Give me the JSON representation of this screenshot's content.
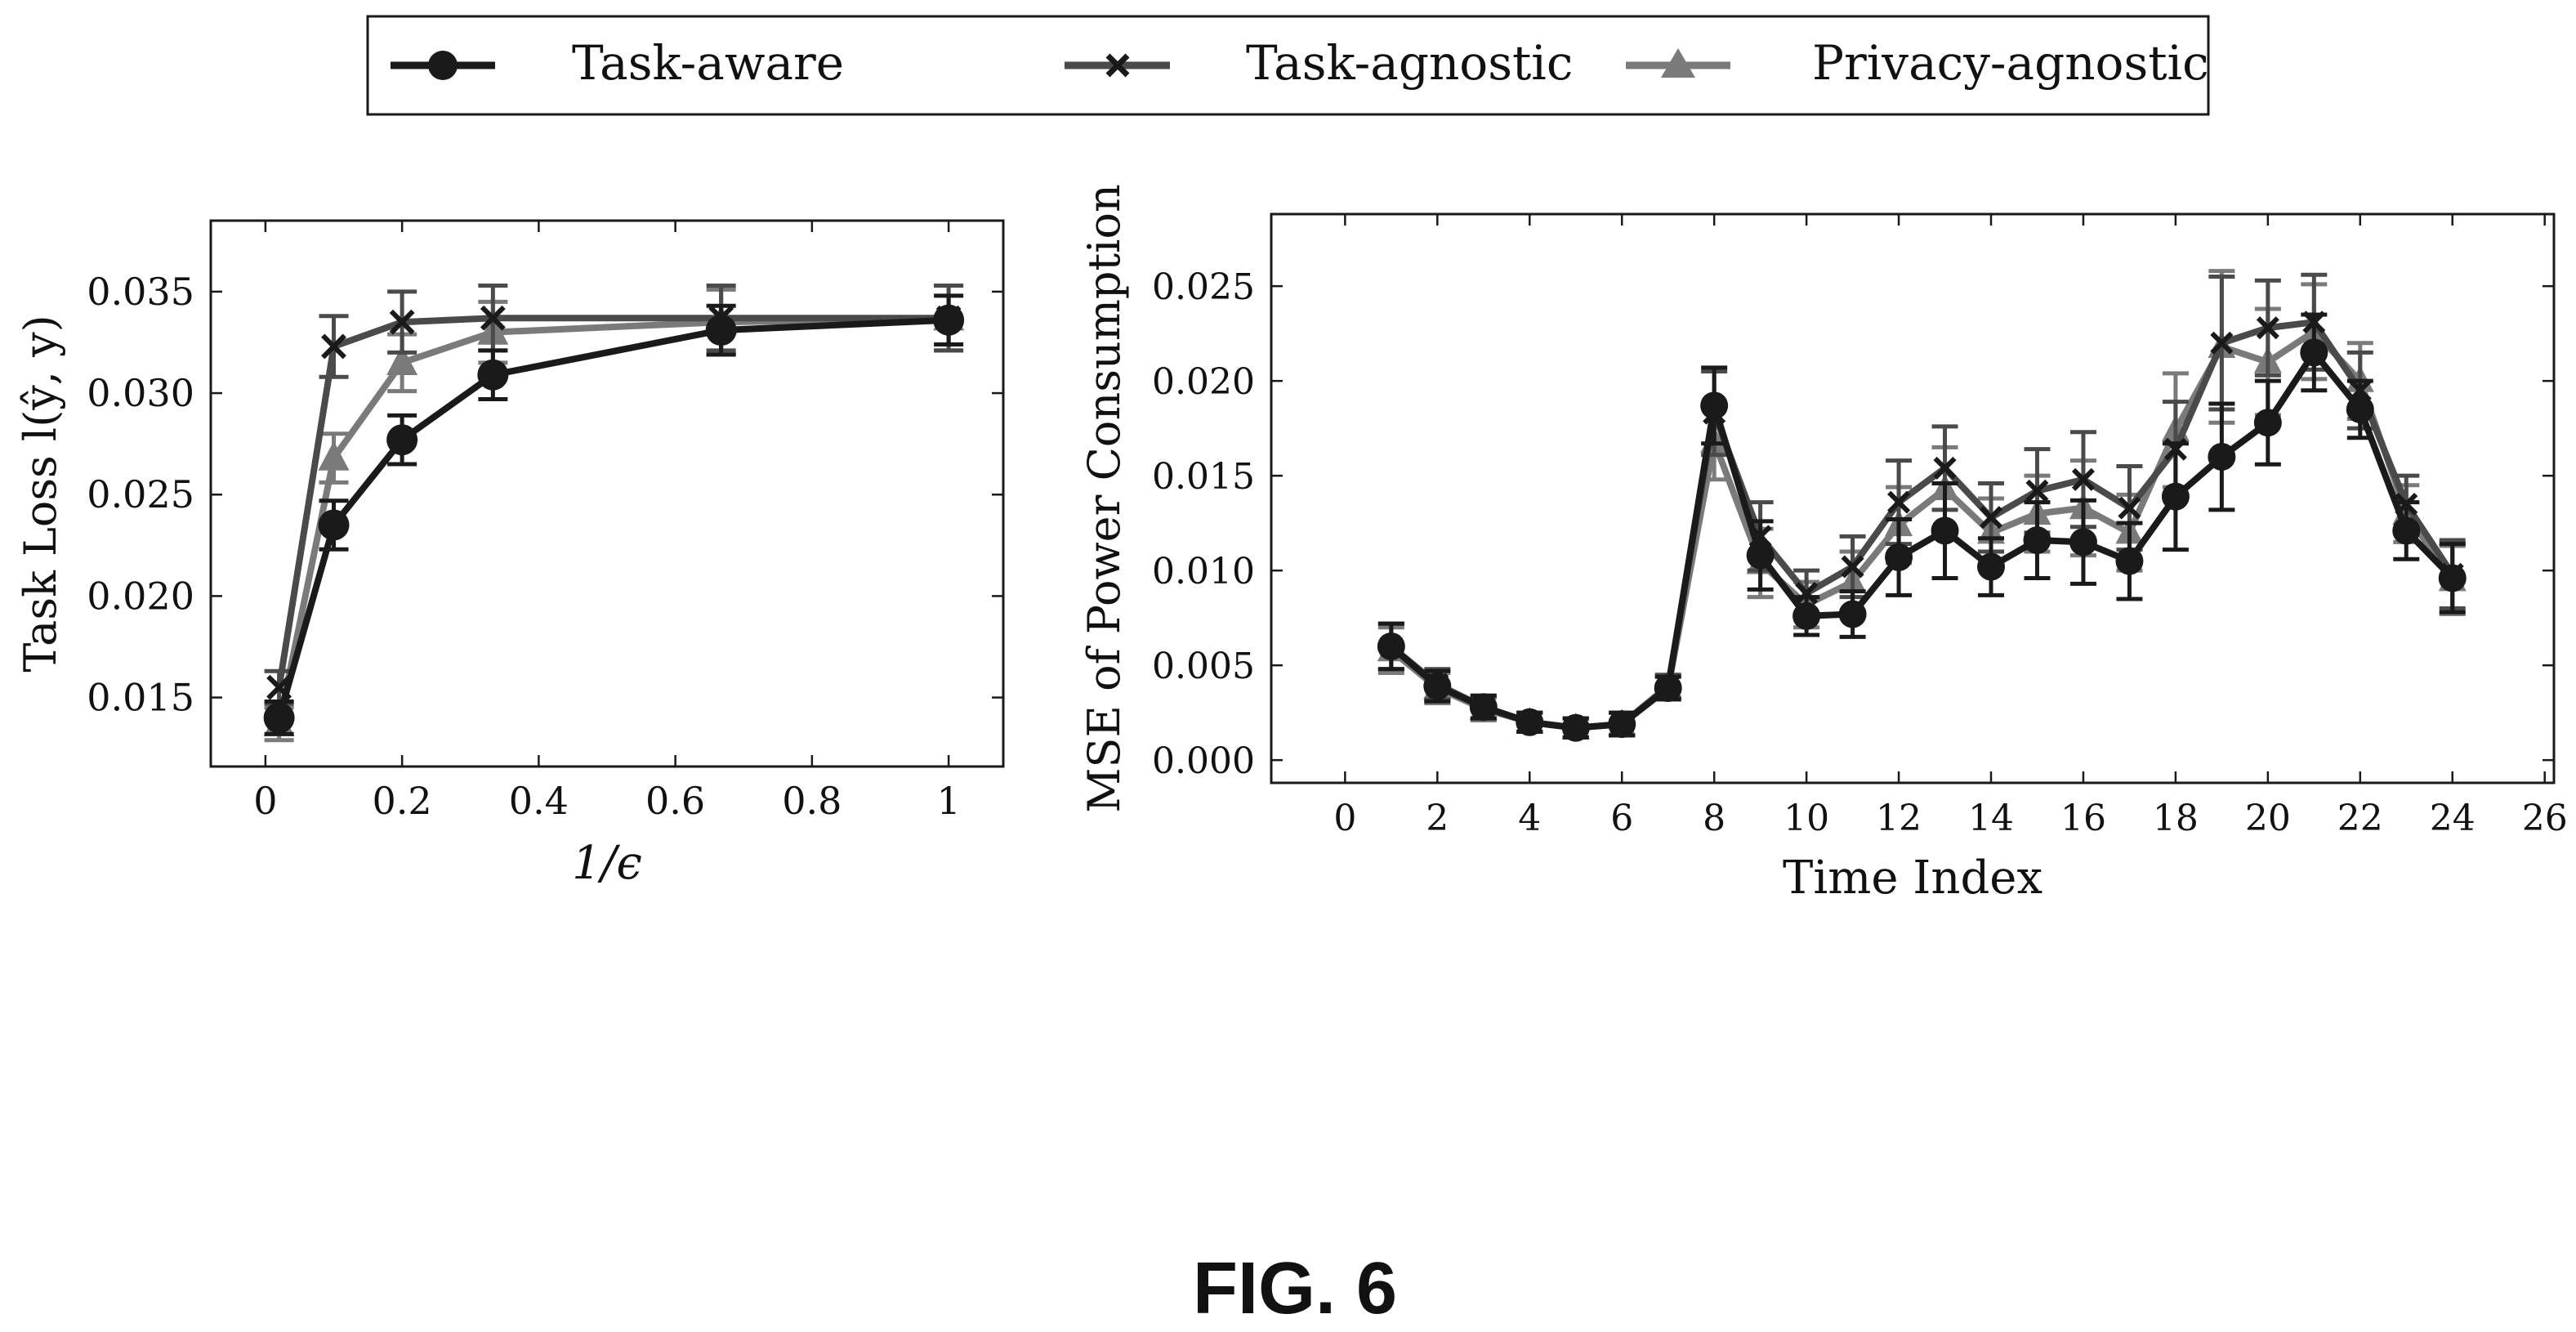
{
  "legend": {
    "entries": [
      {
        "label": "Task-aware",
        "marker": "circle",
        "color": "#1a1a1a"
      },
      {
        "label": "Task-agnostic",
        "marker": "cross",
        "color": "#4a4a4a"
      },
      {
        "label": "Privacy-agnostic",
        "marker": "triangle",
        "color": "#7a7a7a"
      }
    ]
  },
  "caption": "FIG. 6",
  "chart_data": [
    {
      "type": "line",
      "title": "",
      "xlabel": "1/ϵ",
      "ylabel": "Task Loss l(ŷ, y)",
      "xlim": [
        -0.08,
        1.08
      ],
      "ylim": [
        0.0116,
        0.0385
      ],
      "xticks": [
        0,
        0.2,
        0.4,
        0.6,
        0.8,
        1
      ],
      "xtick_labels": [
        "0",
        "0.2",
        "0.4",
        "0.6",
        "0.8",
        "1"
      ],
      "yticks": [
        0.015,
        0.02,
        0.025,
        0.03,
        0.035
      ],
      "ytick_labels": [
        "0.015",
        "0.020",
        "0.025",
        "0.030",
        "0.035"
      ],
      "grid": false,
      "x": [
        0.02,
        0.1,
        0.2,
        0.333,
        0.667,
        1.0
      ],
      "series": [
        {
          "name": "Task-aware",
          "values": [
            0.014,
            0.0235,
            0.0277,
            0.0309,
            0.0331,
            0.0336
          ],
          "errors": [
            0.0008,
            0.0012,
            0.0012,
            0.0012,
            0.0012,
            0.0012
          ]
        },
        {
          "name": "Task-agnostic",
          "values": [
            0.0155,
            0.0323,
            0.0335,
            0.0337,
            0.0337,
            0.0337
          ],
          "errors": [
            0.0008,
            0.0015,
            0.0015,
            0.0016,
            0.0016,
            0.0016
          ]
        },
        {
          "name": "Privacy-agnostic",
          "values": [
            0.0137,
            0.0268,
            0.0315,
            0.033,
            0.0335,
            0.0337
          ],
          "errors": [
            0.0008,
            0.0012,
            0.0014,
            0.0015,
            0.0016,
            0.0016
          ]
        }
      ]
    },
    {
      "type": "line",
      "title": "",
      "xlabel": "Time Index",
      "ylabel": "MSE of Power Consumption",
      "xlim": [
        -1.6,
        26.2
      ],
      "ylim": [
        -0.0012,
        0.0288
      ],
      "xticks": [
        0,
        2,
        4,
        6,
        8,
        10,
        12,
        14,
        16,
        18,
        20,
        22,
        24,
        26
      ],
      "xtick_labels": [
        "0",
        "2",
        "4",
        "6",
        "8",
        "10",
        "12",
        "14",
        "16",
        "18",
        "20",
        "22",
        "24",
        "26"
      ],
      "yticks": [
        0,
        0.005,
        0.01,
        0.015,
        0.02,
        0.025
      ],
      "ytick_labels": [
        "0.000",
        "0.005",
        "0.010",
        "0.015",
        "0.020",
        "0.025"
      ],
      "grid": false,
      "x": [
        1,
        2,
        3,
        4,
        5,
        6,
        7,
        8,
        9,
        10,
        11,
        12,
        13,
        14,
        15,
        16,
        17,
        18,
        19,
        20,
        21,
        22,
        23,
        24
      ],
      "series": [
        {
          "name": "Task-aware",
          "values": [
            0.006,
            0.0039,
            0.0028,
            0.002,
            0.0017,
            0.0019,
            0.0038,
            0.0187,
            0.0108,
            0.0076,
            0.0077,
            0.0107,
            0.0121,
            0.0102,
            0.0116,
            0.0115,
            0.0105,
            0.0139,
            0.016,
            0.0178,
            0.0215,
            0.0185,
            0.0121,
            0.0096
          ],
          "errors": [
            0.0012,
            0.0008,
            0.0006,
            0.0005,
            0.0005,
            0.0006,
            0.0006,
            0.002,
            0.0018,
            0.001,
            0.0012,
            0.002,
            0.0025,
            0.0015,
            0.002,
            0.0022,
            0.002,
            0.0028,
            0.0028,
            0.0022,
            0.002,
            0.0015,
            0.0015,
            0.0018
          ]
        },
        {
          "name": "Task-agnostic",
          "values": [
            0.006,
            0.004,
            0.0028,
            0.002,
            0.0017,
            0.0019,
            0.0039,
            0.0183,
            0.0118,
            0.0088,
            0.0102,
            0.0136,
            0.0154,
            0.0128,
            0.0142,
            0.0148,
            0.0133,
            0.0164,
            0.022,
            0.0228,
            0.0231,
            0.0195,
            0.0135,
            0.0098
          ],
          "errors": [
            0.0012,
            0.0008,
            0.0006,
            0.0005,
            0.0005,
            0.0006,
            0.0006,
            0.0022,
            0.0018,
            0.0012,
            0.0016,
            0.0022,
            0.0022,
            0.0018,
            0.0022,
            0.0025,
            0.0022,
            0.0025,
            0.0035,
            0.0025,
            0.0025,
            0.002,
            0.0015,
            0.0018
          ]
        },
        {
          "name": "Privacy-agnostic",
          "values": [
            0.0058,
            0.0038,
            0.0027,
            0.002,
            0.0017,
            0.0019,
            0.0038,
            0.0168,
            0.0104,
            0.0082,
            0.0094,
            0.0124,
            0.0143,
            0.012,
            0.013,
            0.0133,
            0.012,
            0.0174,
            0.0218,
            0.021,
            0.0226,
            0.02,
            0.013,
            0.0095
          ],
          "errors": [
            0.0012,
            0.0008,
            0.0006,
            0.0005,
            0.0005,
            0.0006,
            0.0006,
            0.002,
            0.0018,
            0.0012,
            0.0016,
            0.002,
            0.0022,
            0.0018,
            0.002,
            0.0025,
            0.002,
            0.003,
            0.004,
            0.0028,
            0.0025,
            0.002,
            0.0015,
            0.0018
          ]
        }
      ]
    }
  ]
}
